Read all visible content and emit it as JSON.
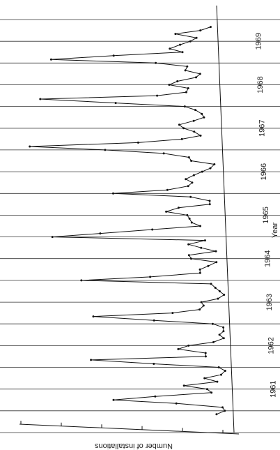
{
  "chart_data": {
    "type": "line",
    "orientation": "rotated-90",
    "title": "",
    "xlabel": "Year",
    "ylabel": "Number of installations",
    "grid": true,
    "legend": "none",
    "x_ticks": [
      "1961",
      "1962",
      "1963",
      "1964",
      "1965",
      "1966",
      "1967",
      "1968",
      "1969"
    ],
    "xlim": [
      1960.5,
      1970.0
    ],
    "ylim": [
      0,
      100
    ],
    "series": [
      {
        "x": [
          1960.92,
          1961.0,
          1961.08,
          1961.17,
          1961.25,
          1961.33,
          1961.42,
          1961.5,
          1961.58,
          1961.67,
          1961.75,
          1961.83,
          1961.92,
          1962.0,
          1962.08,
          1962.17,
          1962.25,
          1962.33,
          1962.42,
          1962.5,
          1962.58,
          1962.67,
          1962.75,
          1962.83,
          1962.92,
          1963.0,
          1963.08,
          1963.17,
          1963.25,
          1963.33,
          1963.42,
          1963.5,
          1963.58,
          1963.67,
          1963.75,
          1963.83,
          1963.92,
          1964.0,
          1964.08,
          1964.17,
          1964.25,
          1964.33,
          1964.42,
          1964.5,
          1964.58,
          1964.67,
          1964.75,
          1964.83,
          1964.92,
          1965.0,
          1965.08,
          1965.17,
          1965.25,
          1965.33,
          1965.42,
          1965.5,
          1965.58,
          1965.67,
          1965.75,
          1965.83,
          1965.92,
          1966.0,
          1966.08,
          1966.17,
          1966.25,
          1966.33,
          1966.42,
          1966.5,
          1966.58,
          1966.67,
          1966.75,
          1966.83,
          1966.92,
          1967.0,
          1967.08,
          1967.17,
          1967.25,
          1967.33,
          1967.42,
          1967.5,
          1967.58,
          1967.67,
          1967.75,
          1967.83,
          1967.92,
          1968.0,
          1968.08,
          1968.17,
          1968.25,
          1968.33,
          1968.42,
          1968.5,
          1968.58,
          1968.67,
          1968.75,
          1968.83,
          1968.92,
          1969.0,
          1969.08,
          1969.17,
          1969.25,
          1969.33,
          1969.42,
          1969.5,
          1969.58,
          1969.67,
          1969.75,
          1969.83
        ],
        "values": [
          8,
          4,
          5,
          27,
          57,
          37,
          10,
          12,
          23,
          7,
          13,
          5,
          3,
          6,
          37,
          67,
          12,
          12,
          25,
          20,
          8,
          3,
          5,
          3,
          3,
          8,
          36,
          65,
          27,
          14,
          12,
          13,
          5,
          2,
          4,
          6,
          8,
          70,
          37,
          13,
          13,
          9,
          5,
          17,
          18,
          5,
          12,
          18,
          10,
          83,
          60,
          35,
          12,
          16,
          17,
          18,
          28,
          22,
          7,
          7,
          16,
          53,
          27,
          17,
          15,
          18,
          14,
          10,
          6,
          4,
          15,
          16,
          28,
          56,
          92,
          40,
          19,
          10,
          13,
          18,
          20,
          13,
          8,
          9,
          12,
          17,
          50,
          86,
          30,
          16,
          15,
          24,
          20,
          11,
          9,
          16,
          15,
          30,
          80,
          50,
          17,
          23,
          18,
          13,
          10,
          20,
          8,
          3
        ]
      }
    ]
  }
}
